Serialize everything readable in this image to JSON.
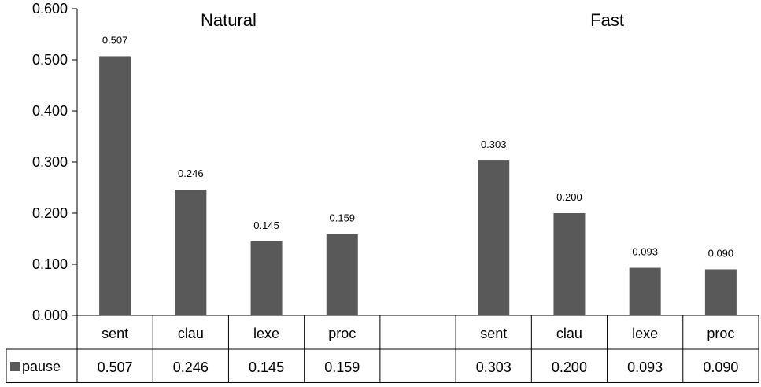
{
  "chart_data": {
    "type": "bar",
    "groups": [
      {
        "title": "Natural",
        "categories": [
          "sent",
          "clau",
          "lexe",
          "proc"
        ]
      },
      {
        "title": "Fast",
        "categories": [
          "sent",
          "clau",
          "lexe",
          "proc"
        ]
      }
    ],
    "series": [
      {
        "name": "pause",
        "color": "#595959",
        "values": [
          0.507,
          0.246,
          0.145,
          0.159,
          0.303,
          0.2,
          0.093,
          0.09
        ],
        "labels": [
          "0.507",
          "0.246",
          "0.145",
          "0.159",
          "0.303",
          "0.200",
          "0.093",
          "0.090"
        ]
      }
    ],
    "yticks": [
      "0.000",
      "0.100",
      "0.200",
      "0.300",
      "0.400",
      "0.500",
      "0.600"
    ],
    "ylim": [
      0,
      0.6
    ],
    "grid": false,
    "legend": "data-table-left",
    "data_table": true
  }
}
